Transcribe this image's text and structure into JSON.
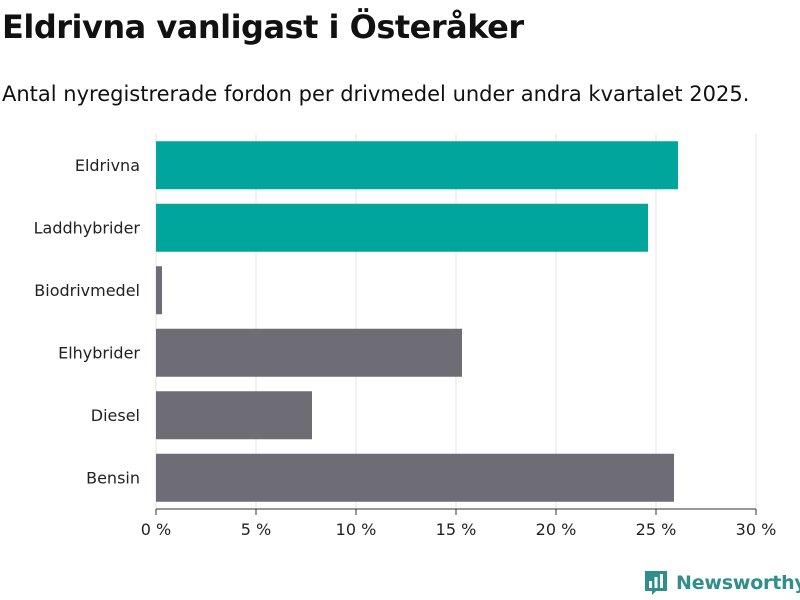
{
  "header": {
    "title": "Eldrivna vanligast i Österåker",
    "subtitle": "Antal nyregistrerade fordon per drivmedel under andra kvartalet 2025."
  },
  "chart_data": {
    "type": "bar",
    "orientation": "horizontal",
    "categories": [
      "Eldrivna",
      "Laddhybrider",
      "Biodrivmedel",
      "Elhybrider",
      "Diesel",
      "Bensin"
    ],
    "values": [
      26.1,
      24.6,
      0.3,
      15.3,
      7.8,
      25.9
    ],
    "unit": "%",
    "xlim": [
      0,
      30
    ],
    "xticks": [
      0,
      5,
      10,
      15,
      20,
      25,
      30
    ],
    "xtick_labels": [
      "0 %",
      "5 %",
      "10 %",
      "15 %",
      "20 %",
      "25 %",
      "30 %"
    ],
    "grid": true,
    "colors": [
      "#00a59b",
      "#00a59b",
      "#6e6d75",
      "#6e6d75",
      "#6e6d75",
      "#6e6d75"
    ],
    "grid_color": "#e3e3e3",
    "axis_color": "#333333"
  },
  "branding": {
    "logo_text": "Newsworthy",
    "logo_icon": "newsworthy-chart-icon",
    "logo_color": "#2f8f8a"
  }
}
